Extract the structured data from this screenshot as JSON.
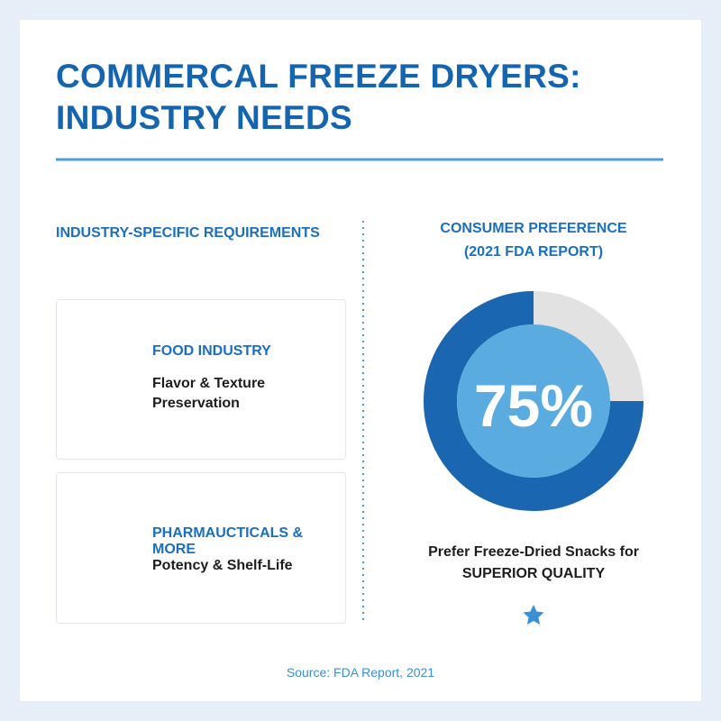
{
  "header": {
    "title": "COMMERCAL FREEZE DRYERS: INDUSTRY NEEDS"
  },
  "requirements": {
    "heading": "INDUSTRY-SPECIFIC REQUIREMENTS",
    "items": [
      {
        "title": "FOOD INDUSTRY",
        "text": "Flavor & Texture Preservation"
      },
      {
        "title": "PHARMAUCTICALS & MORE",
        "text": "Potency & Shelf-Life"
      }
    ]
  },
  "chart_data": {
    "type": "donut",
    "title": "CONSUMER PREFERENCE",
    "subtitle": "(2021 FDA REPORT)",
    "values": [
      75
    ],
    "value_labels": [
      "75%"
    ],
    "color": "#1a66b0",
    "track_color": "#e2e2e2",
    "center_color": "#5aace0",
    "annotations": [
      "Prefer Freeze-Dried Snacks for",
      "SUPERIOR QUALITY"
    ]
  },
  "footer": {
    "source": "Source: FDA Report, 2021"
  }
}
